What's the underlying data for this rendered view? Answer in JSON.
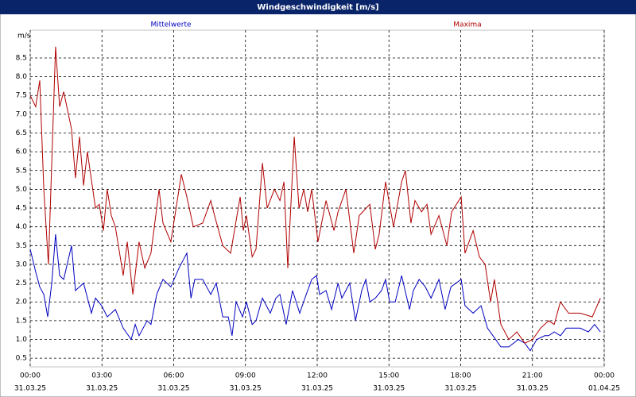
{
  "chart_data": {
    "type": "line",
    "title": "Windgeschwindigkeit [m/s]",
    "y_label": "m/s",
    "xlim": [
      0,
      24
    ],
    "xticks": [
      {
        "value": 0,
        "label": "00:00"
      },
      {
        "value": 3,
        "label": "03:00"
      },
      {
        "value": 6,
        "label": "06:00"
      },
      {
        "value": 9,
        "label": "09:00"
      },
      {
        "value": 12,
        "label": "12:00"
      },
      {
        "value": 15,
        "label": "15:00"
      },
      {
        "value": 18,
        "label": "18:00"
      },
      {
        "value": 21,
        "label": "21:00"
      },
      {
        "value": 24,
        "label": "00:00"
      }
    ],
    "xtick_dates": [
      "31.03.25",
      "31.03.25",
      "31.03.25",
      "31.03.25",
      "31.03.25",
      "31.03.25",
      "31.03.25",
      "31.03.25",
      "01.04.25"
    ],
    "ylim": [
      0.27,
      9.24
    ],
    "yticks": [
      {
        "value": 0.5,
        "label": "0.5"
      },
      {
        "value": 1,
        "label": "1.0"
      },
      {
        "value": 1.5,
        "label": "1.5"
      },
      {
        "value": 2,
        "label": "2.0"
      },
      {
        "value": 2.5,
        "label": "2.5"
      },
      {
        "value": 3,
        "label": "3.0"
      },
      {
        "value": 3.5,
        "label": "3.5"
      },
      {
        "value": 4,
        "label": "4.0"
      },
      {
        "value": 4.5,
        "label": "4.5"
      },
      {
        "value": 5,
        "label": "5.0"
      },
      {
        "value": 5.5,
        "label": "5.5"
      },
      {
        "value": 6,
        "label": "6.0"
      },
      {
        "value": 6.5,
        "label": "6.5"
      },
      {
        "value": 7,
        "label": "7.0"
      },
      {
        "value": 7.5,
        "label": "7.5"
      },
      {
        "value": 8,
        "label": "8.0"
      },
      {
        "value": 8.5,
        "label": "8.5"
      }
    ],
    "grid": true,
    "series": [
      {
        "name": "Mittelwerte",
        "color": "#0000c0",
        "x": [
          0,
          0.23,
          0.4,
          0.57,
          0.73,
          0.9,
          1.06,
          1.23,
          1.4,
          1.73,
          1.89,
          2.23,
          2.56,
          2.73,
          2.99,
          3.22,
          3.56,
          3.89,
          4.22,
          4.39,
          4.55,
          4.89,
          5.05,
          5.29,
          5.55,
          5.88,
          6.22,
          6.55,
          6.72,
          6.88,
          7.21,
          7.55,
          7.78,
          8.05,
          8.28,
          8.44,
          8.61,
          8.88,
          9.04,
          9.28,
          9.44,
          9.71,
          10.04,
          10.27,
          10.44,
          10.7,
          10.97,
          11.27,
          11.54,
          11.77,
          11.97,
          12.1,
          12.37,
          12.6,
          12.87,
          13.03,
          13.36,
          13.6,
          13.86,
          14.03,
          14.2,
          14.43,
          14.69,
          14.86,
          15.03,
          15.26,
          15.53,
          15.86,
          16.02,
          16.26,
          16.52,
          16.76,
          17.09,
          17.35,
          17.59,
          18.02,
          18.18,
          18.52,
          18.85,
          19.12,
          19.35,
          19.68,
          20.01,
          20.41,
          20.68,
          20.91,
          21.18,
          21.51,
          21.68,
          21.91,
          22.17,
          22.41,
          23,
          23.34,
          23.6,
          23.84
        ],
        "values": [
          3.4,
          2.8,
          2.4,
          2.2,
          1.6,
          2.5,
          3.8,
          2.7,
          2.6,
          3.5,
          2.3,
          2.5,
          1.7,
          2.1,
          1.9,
          1.6,
          1.8,
          1.3,
          1.0,
          1.4,
          1.1,
          1.5,
          1.4,
          2.2,
          2.6,
          2.4,
          2.9,
          3.3,
          2.1,
          2.6,
          2.6,
          2.2,
          2.5,
          1.6,
          1.6,
          1.1,
          2.0,
          1.6,
          2.0,
          1.4,
          1.5,
          2.1,
          1.7,
          2.1,
          2.2,
          1.4,
          2.3,
          1.7,
          2.2,
          2.6,
          2.7,
          2.2,
          2.3,
          1.8,
          2.5,
          2.1,
          2.5,
          1.5,
          2.3,
          2.6,
          2.0,
          2.1,
          2.3,
          2.6,
          2.0,
          2.0,
          2.7,
          1.8,
          2.3,
          2.6,
          2.4,
          2.1,
          2.6,
          1.8,
          2.4,
          2.6,
          1.9,
          1.7,
          1.9,
          1.3,
          1.1,
          0.8,
          0.8,
          1.0,
          0.9,
          0.7,
          1.0,
          1.1,
          1.1,
          1.2,
          1.1,
          1.3,
          1.3,
          1.2,
          1.4,
          1.2
        ]
      },
      {
        "name": "Maxima",
        "color": "#b00000",
        "x": [
          0,
          0.23,
          0.4,
          0.57,
          0.76,
          1.06,
          1.23,
          1.4,
          1.73,
          1.89,
          2.06,
          2.23,
          2.39,
          2.73,
          2.89,
          3.06,
          3.22,
          3.39,
          3.56,
          3.89,
          4.06,
          4.29,
          4.55,
          4.79,
          5.05,
          5.39,
          5.55,
          5.88,
          6.32,
          6.55,
          6.82,
          7.21,
          7.55,
          7.71,
          8.05,
          8.38,
          8.78,
          8.91,
          9.04,
          9.28,
          9.44,
          9.71,
          9.91,
          10.21,
          10.44,
          10.61,
          10.77,
          11.04,
          11.24,
          11.44,
          11.6,
          11.77,
          12.03,
          12.37,
          12.7,
          12.87,
          13.2,
          13.53,
          13.76,
          14.2,
          14.43,
          14.59,
          14.86,
          15.19,
          15.53,
          15.69,
          15.92,
          16.09,
          16.36,
          16.59,
          16.76,
          17.09,
          17.42,
          17.62,
          18.02,
          18.18,
          18.52,
          18.78,
          19.02,
          19.25,
          19.41,
          19.68,
          20.01,
          20.35,
          20.68,
          21.01,
          21.34,
          21.68,
          21.91,
          22.17,
          22.51,
          23,
          23.5,
          23.84
        ],
        "values": [
          7.5,
          7.2,
          7.9,
          5.0,
          3.0,
          8.8,
          7.2,
          7.6,
          6.6,
          5.3,
          6.4,
          5.1,
          6.0,
          4.5,
          4.6,
          3.9,
          5.0,
          4.3,
          4.0,
          2.7,
          3.6,
          2.2,
          3.6,
          2.9,
          3.3,
          5.0,
          4.1,
          3.6,
          5.4,
          4.8,
          4.0,
          4.1,
          4.7,
          4.3,
          3.5,
          3.3,
          4.8,
          3.9,
          4.3,
          3.2,
          3.4,
          5.7,
          4.5,
          5.0,
          4.7,
          5.2,
          2.9,
          6.4,
          4.5,
          5.0,
          4.4,
          5.0,
          3.6,
          4.7,
          3.9,
          4.4,
          5.0,
          3.3,
          4.3,
          4.6,
          3.4,
          3.8,
          5.2,
          4.0,
          5.2,
          5.5,
          4.1,
          4.7,
          4.4,
          4.6,
          3.8,
          4.3,
          3.5,
          4.4,
          4.8,
          3.3,
          3.9,
          3.2,
          3.0,
          2.0,
          2.6,
          1.4,
          1.0,
          1.2,
          0.9,
          1.0,
          1.3,
          1.5,
          1.4,
          2.0,
          1.7,
          1.7,
          1.6,
          2.1
        ]
      }
    ]
  }
}
